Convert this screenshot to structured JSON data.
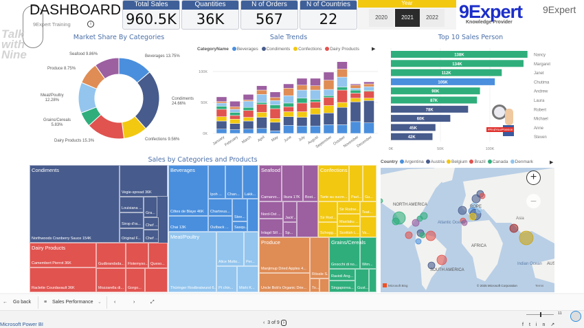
{
  "header": {
    "title": "DASHBOARD",
    "subtitle": "9Expert Training",
    "watermark": "Talk with Nine"
  },
  "kpis": [
    {
      "label": "Total Sales",
      "value": "960.5K"
    },
    {
      "label": "Quantities",
      "value": "36K"
    },
    {
      "label": "N of Orders",
      "value": "567"
    },
    {
      "label": "N of Countries",
      "value": "22"
    }
  ],
  "year_slicer": {
    "title": "Year",
    "options": [
      "2020",
      "2021",
      "2022"
    ],
    "selected": "2021"
  },
  "logo": {
    "text": "9Expert",
    "tagline": "Knowledge Provider"
  },
  "colors": {
    "Beverages": "#4a8fdd",
    "Condiments": "#475b8c",
    "Confections": "#f2c811",
    "Dairy Products": "#e0534f",
    "Grains/Cereals": "#2fae7c",
    "Meat/Poultry": "#93c5ee",
    "Produce": "#df8c55",
    "Seafood": "#9c5fa0"
  },
  "chart_data": [
    {
      "type": "pie",
      "title": "Market Share By Categories",
      "donut": true,
      "slices": [
        {
          "name": "Beverages",
          "value": 13.75,
          "label": "Beverages 13.75%"
        },
        {
          "name": "Condiments",
          "value": 24.66,
          "label": "Condiments 24.66%"
        },
        {
          "name": "Confections",
          "value": 9.56,
          "label": "Confections 9.56%"
        },
        {
          "name": "Dairy Products",
          "value": 15.3,
          "label": "Dairy Products 15.3%"
        },
        {
          "name": "Grains/Cereals",
          "value": 5.83,
          "label": "Grains/Cereals 5.83%"
        },
        {
          "name": "Meat/Poultry",
          "value": 12.28,
          "label": "Meat/Poultry 12.28%"
        },
        {
          "name": "Produce",
          "value": 8.75,
          "label": "Produce 8.75%"
        },
        {
          "name": "Seafood",
          "value": 9.86,
          "label": "Seafood 9.86%"
        }
      ]
    },
    {
      "type": "bar",
      "stacked": true,
      "title": "Sale Trends",
      "legend_title": "CategoryName",
      "legend_visible": [
        "Beverages",
        "Condiments",
        "Confections",
        "Dairy Products"
      ],
      "categories": [
        "January",
        "February",
        "March",
        "April",
        "May",
        "June",
        "July",
        "August",
        "September",
        "October",
        "November",
        "December"
      ],
      "yticks": [
        "0K",
        "50K",
        "100K"
      ],
      "ylim": [
        0,
        120000
      ],
      "series": [
        {
          "name": "Beverages",
          "values": [
            7000,
            6000,
            7000,
            8000,
            4000,
            13000,
            12000,
            12000,
            14000,
            14000,
            19000,
            17000
          ]
        },
        {
          "name": "Condiments",
          "values": [
            13000,
            10000,
            13000,
            18000,
            14000,
            14000,
            14000,
            19000,
            19000,
            28000,
            32000,
            36000
          ]
        },
        {
          "name": "Confections",
          "values": [
            7000,
            7000,
            6000,
            8000,
            6000,
            8000,
            9000,
            10000,
            12000,
            8000,
            6000,
            4000
          ]
        },
        {
          "name": "Dairy Products",
          "values": [
            12000,
            6000,
            11000,
            13000,
            16000,
            8000,
            14000,
            10000,
            13000,
            20000,
            8000,
            11000
          ]
        },
        {
          "name": "Grains/Cereals",
          "values": [
            5000,
            5000,
            5000,
            3000,
            6000,
            6000,
            8000,
            4000,
            3000,
            5000,
            5000,
            1500
          ]
        },
        {
          "name": "Meat/Poultry",
          "values": [
            5000,
            5000,
            10000,
            13000,
            7000,
            12000,
            13000,
            15000,
            10000,
            16000,
            3000,
            6000
          ]
        },
        {
          "name": "Produce",
          "values": [
            2500,
            4000,
            2000,
            7000,
            5000,
            12000,
            8000,
            7000,
            15000,
            13000,
            5000,
            4500
          ]
        },
        {
          "name": "Seafood",
          "values": [
            7500,
            9000,
            9000,
            7000,
            9000,
            7000,
            11000,
            12000,
            13000,
            13000,
            2000,
            3300
          ]
        }
      ]
    },
    {
      "type": "bar",
      "orientation": "horizontal",
      "title": "Top 10 Sales Person",
      "categories": [
        "Nancy",
        "Margaret",
        "Janet",
        "Chutima",
        "Andrew",
        "Laura",
        "Robert",
        "Michael",
        "Anne",
        "Steven"
      ],
      "values": [
        138000,
        134000,
        112000,
        105000,
        90000,
        87000,
        78000,
        60000,
        45000,
        42000
      ],
      "labels": [
        "138K",
        "134K",
        "112K",
        "105K",
        "90K",
        "87K",
        "78K",
        "60K",
        "45K",
        "42K"
      ],
      "colors": [
        "#2fae7c",
        "#2fae7c",
        "#2fae7c",
        "#4a8fdd",
        "#2fae7c",
        "#2fae7c",
        "#475b8c",
        "#475b8c",
        "#475b8c",
        "#475b8c"
      ],
      "xticks": [
        "0K",
        "50K",
        "100K"
      ],
      "xlim": [
        0,
        140000
      ]
    }
  ],
  "badge": {
    "text": "#FindYourPassion"
  },
  "treemap": {
    "title": "Sales by Categories and Products",
    "categories": [
      {
        "name": "Condiments",
        "products": [
          "Northwoods Cranberry Sauce 154K",
          "Vegie-spread 36K",
          "Louisiana ...",
          "Gra...",
          "Sirop d'ra...",
          "Chef ...",
          "Original F...",
          "Chef ..."
        ]
      },
      {
        "name": "Dairy Products",
        "products": [
          "Camembert Pierrot 36K",
          "Raclette Courdavault 36K",
          "Gudbrandsda...",
          "Mozzarella di...",
          "Flotemyso...",
          "Queso...",
          "Gorgo...",
          ""
        ]
      },
      {
        "name": "Beverages",
        "products": [
          "Côtes de Blaye 46K",
          "Chai 13K",
          "Ipoh ...",
          "Chan...",
          "Lakk...",
          "Chartreus...",
          "Stee...",
          "Outback ...",
          "Sasqu...",
          ""
        ]
      },
      {
        "name": "Meat/Poultry",
        "products": [
          "Thüringer Rostbratwurst 6...",
          "Alice Mutto...",
          "Per...",
          "Pt chin...",
          "Mishi K..."
        ]
      },
      {
        "name": "Seafood",
        "products": [
          "Carnarvo...",
          "Ikura 17K",
          "Bost...",
          "Nord-Ost ...",
          "Inlagd Sill ...",
          "Jack'...",
          "Sp...",
          ""
        ]
      },
      {
        "name": "Confections",
        "products": [
          "Tarte au sucre...",
          "Pavl...",
          "Gu...",
          "Sir Rod...",
          "Sir Rodne...",
          "Teat...",
          "Maxilaku ...",
          "Schogg...",
          "Scottish L...",
          "Va..."
        ]
      },
      {
        "name": "Produce",
        "products": [
          "Manjimup Dried Apples 4...",
          "Uncle Bob's Organic Drie...",
          "Rössle S...",
          "To...",
          ""
        ]
      },
      {
        "name": "Grains/Cereals",
        "products": [
          "Gnocchi di no...",
          "Wim...",
          "Ravioli Ang...",
          "Singaporea...",
          "Gust...",
          ""
        ]
      }
    ]
  },
  "map": {
    "legend_title": "Country",
    "legend": [
      {
        "name": "Argentina",
        "color": "#4a8fdd"
      },
      {
        "name": "Austria",
        "color": "#475b8c"
      },
      {
        "name": "Belgium",
        "color": "#f2c811"
      },
      {
        "name": "Brazil",
        "color": "#e0534f"
      },
      {
        "name": "Canada",
        "color": "#2fae7c"
      },
      {
        "name": "Denmark",
        "color": "#93c5ee"
      }
    ],
    "labels": [
      "NORTH AMERICA",
      "Atlantic Ocean",
      "ROPE",
      "Asia",
      "AFRICA",
      "SOUTH AMERICA",
      "Indian Ocean",
      "AUST"
    ],
    "attribution": "Microsoft Bing",
    "copyright": "© 2025 Microsoft Corporation",
    "terms": "Terms"
  },
  "nav": {
    "back": "Go back",
    "page": "Sales Performance"
  },
  "footer": {
    "app": "Microsoft Power BI",
    "pager": "3 of 9",
    "zoom": "11"
  }
}
